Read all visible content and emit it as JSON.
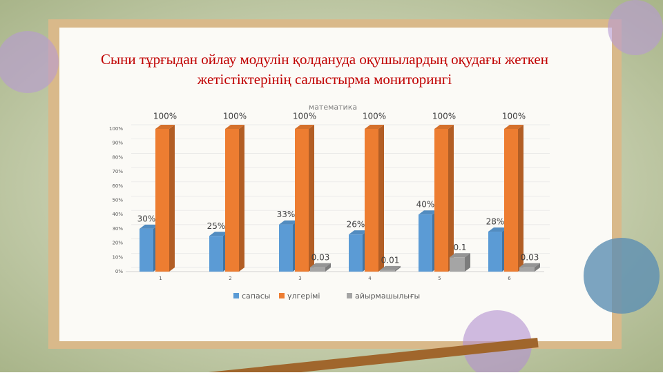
{
  "slide": {
    "title_lines": [
      "Сыни тұрғыдан ойлау модулін қолдануда оқушылардың оқудағы жеткен",
      "жетістіктерінің  салыстырма мониторингі"
    ]
  },
  "chart_data": {
    "type": "bar",
    "title": "математика",
    "categories": [
      "1",
      "2",
      "3",
      "4",
      "5",
      "6"
    ],
    "series": [
      {
        "name": "сапасы",
        "color": "#5b9bd5",
        "values": [
          30,
          25,
          33,
          26,
          40,
          28
        ],
        "value_labels": [
          "30%",
          "25%",
          "33%",
          "26%",
          "40%",
          "28%"
        ]
      },
      {
        "name": "үлгерімі",
        "color": "#ed7d31",
        "values": [
          100,
          100,
          100,
          100,
          100,
          100
        ],
        "value_labels": [
          "100%",
          "100%",
          "100%",
          "100%",
          "100%",
          "100%"
        ]
      },
      {
        "name": "айырмашылығы",
        "color": "#a5a5a5",
        "values": [
          null,
          null,
          3,
          1,
          10,
          3
        ],
        "value_labels": [
          null,
          null,
          "0.03",
          "0.01",
          "0.1",
          "0.03"
        ]
      }
    ],
    "ylim": [
      0,
      100
    ],
    "yticks": [
      {
        "value": 0,
        "label": "0%"
      },
      {
        "value": 10,
        "label": "10%"
      },
      {
        "value": 20,
        "label": "20%"
      },
      {
        "value": 30,
        "label": "30%"
      },
      {
        "value": 40,
        "label": "40%"
      },
      {
        "value": 50,
        "label": "50%"
      },
      {
        "value": 60,
        "label": "60%"
      },
      {
        "value": 70,
        "label": "70%"
      },
      {
        "value": 80,
        "label": "80%"
      },
      {
        "value": 90,
        "label": "90%"
      },
      {
        "value": 100,
        "label": "100%"
      }
    ],
    "grid": true,
    "legend": "bottom"
  }
}
